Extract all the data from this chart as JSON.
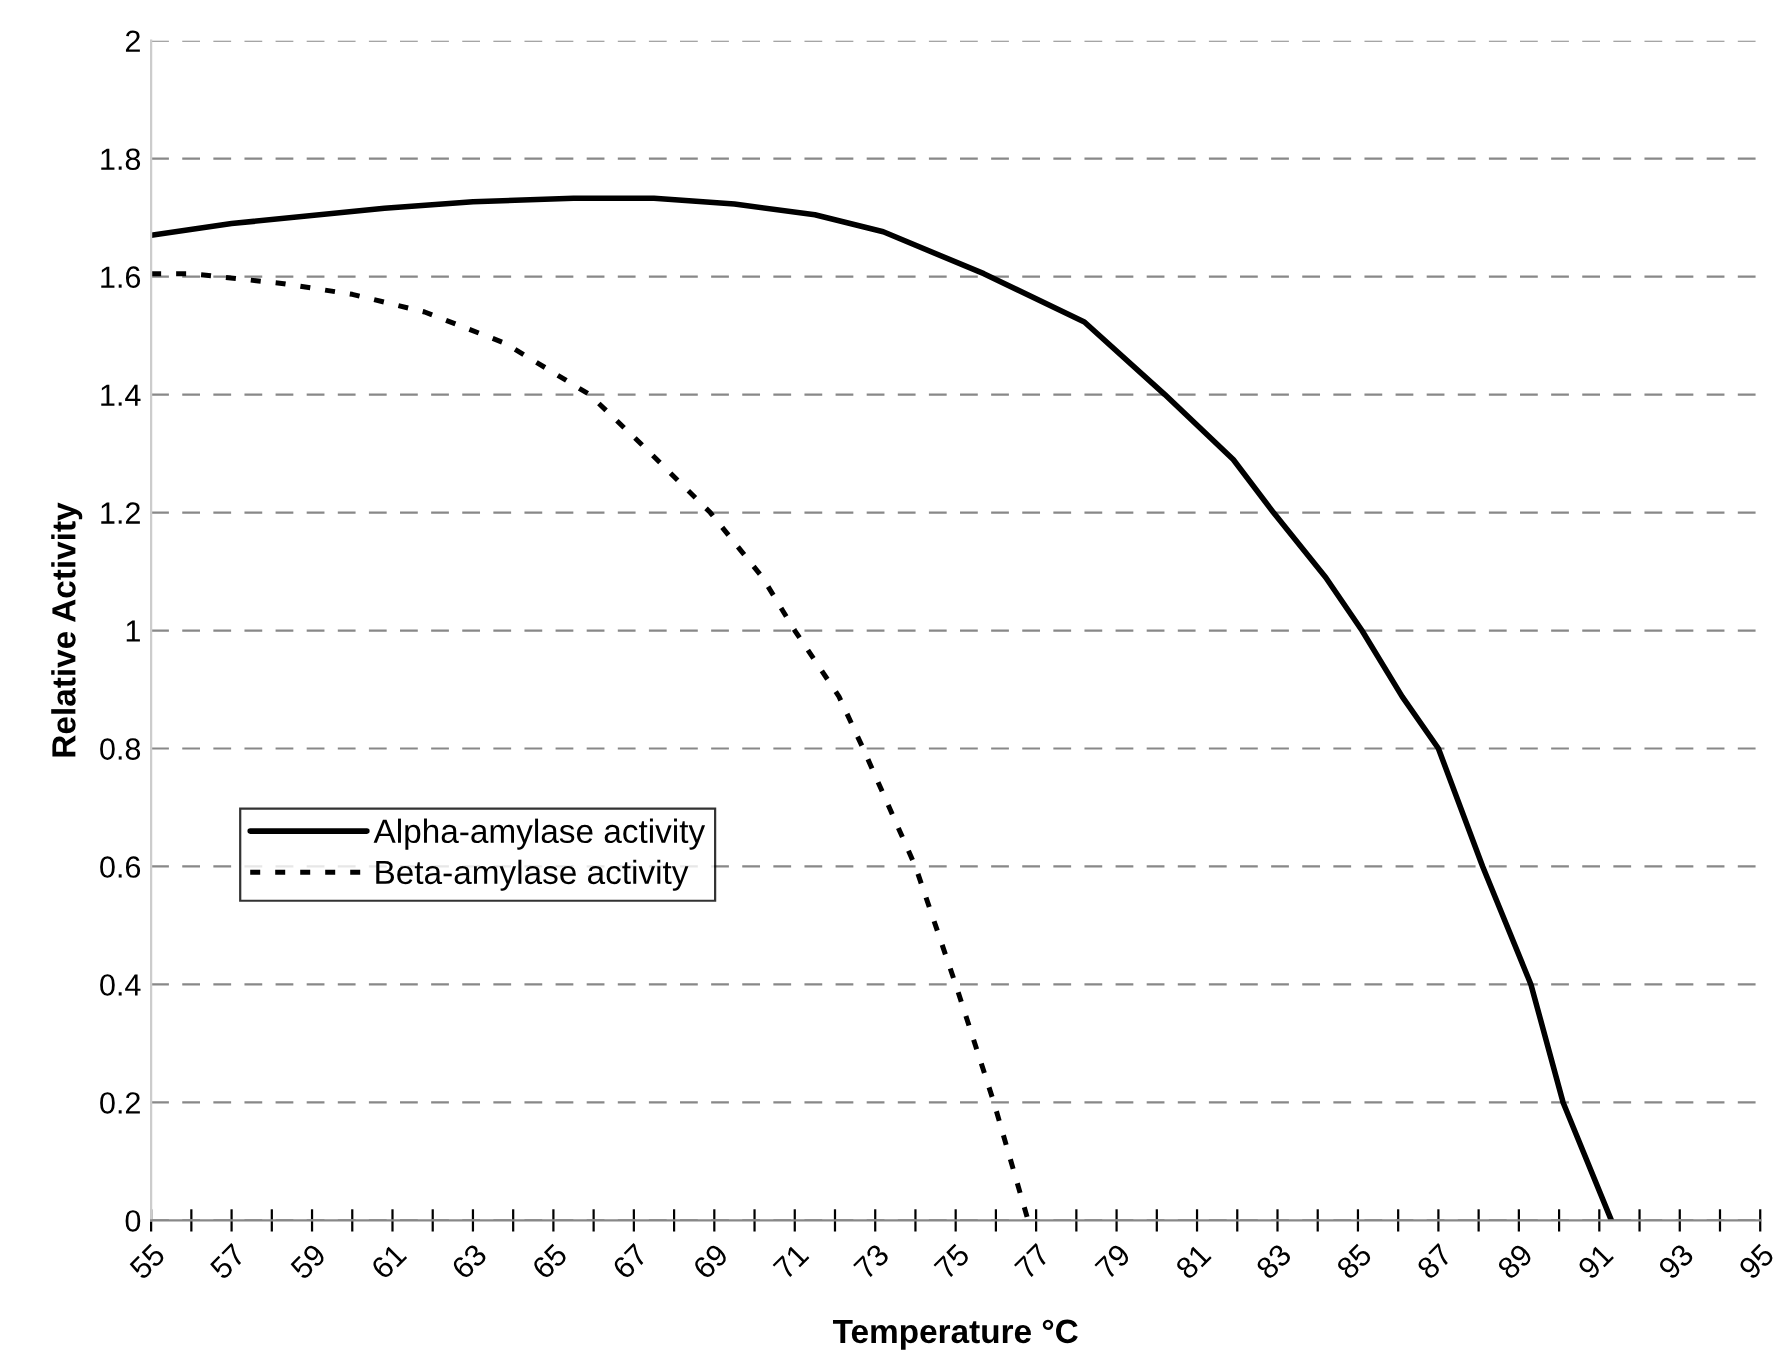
{
  "chart_data": {
    "type": "line",
    "xlabel": "Temperature °C",
    "ylabel": "Relative Activity",
    "xlim": [
      55,
      95
    ],
    "ylim": [
      0,
      2
    ],
    "xticks": [
      55,
      {
        "value": 56,
        "label": null
      },
      57,
      {
        "value": 58,
        "label": null
      },
      59,
      {
        "value": 60,
        "label": null
      },
      61,
      {
        "value": 62,
        "label": null
      },
      63,
      {
        "value": 64,
        "label": null
      },
      65,
      {
        "value": 66,
        "label": null
      },
      67,
      {
        "value": 68,
        "label": null
      },
      69,
      {
        "value": 70,
        "label": null
      },
      71,
      {
        "value": 72,
        "label": null
      },
      73,
      {
        "value": 74,
        "label": null
      },
      75,
      {
        "value": 76,
        "label": null
      },
      77,
      {
        "value": 78,
        "label": null
      },
      79,
      {
        "value": 80,
        "label": null
      },
      81,
      {
        "value": 82,
        "label": null
      },
      83,
      {
        "value": 84,
        "label": null
      },
      85,
      {
        "value": 86,
        "label": null
      },
      87,
      {
        "value": 88,
        "label": null
      },
      89,
      {
        "value": 90,
        "label": null
      },
      91,
      {
        "value": 92,
        "label": null
      },
      93,
      {
        "value": 94,
        "label": null
      },
      95
    ],
    "yticks": [
      0,
      0.2,
      0.4,
      0.6,
      0.8,
      1,
      1.2,
      1.4,
      1.6,
      1.8,
      2
    ],
    "grid": "y",
    "legend": "left",
    "marker": "none",
    "series": [
      {
        "name": "Alpha-amylase activity",
        "color": "#000000",
        "line_style": "solid",
        "x": [
          55,
          57,
          60.8,
          63,
          65.5,
          67.5,
          69.5,
          71.5,
          73.2,
          75.7,
          78.2,
          80.2,
          81.9,
          82.9,
          84.2,
          85.1,
          86.1,
          87,
          88.1,
          89.3,
          90.1,
          91.3
        ],
        "values": [
          1.67,
          1.69,
          1.716,
          1.727,
          1.733,
          1.733,
          1.723,
          1.705,
          1.676,
          1.605,
          1.523,
          1.4,
          1.29,
          1.2,
          1.09,
          1.0,
          0.888,
          0.8,
          0.6,
          0.4,
          0.2,
          0
        ]
      },
      {
        "name": "Beta-amylase activity",
        "color": "#000000",
        "line_style": "dotted",
        "x": [
          55,
          56,
          58.3,
          60,
          61.8,
          63.8,
          65.9,
          67.2,
          68.9,
          70.2,
          71,
          72.1,
          72.7,
          74,
          75,
          75.95,
          76.8
        ],
        "values": [
          1.605,
          1.605,
          1.588,
          1.57,
          1.54,
          1.487,
          1.4,
          1.315,
          1.2,
          1.09,
          1.0,
          0.888,
          0.8,
          0.6,
          0.4,
          0.2,
          0
        ]
      }
    ]
  }
}
